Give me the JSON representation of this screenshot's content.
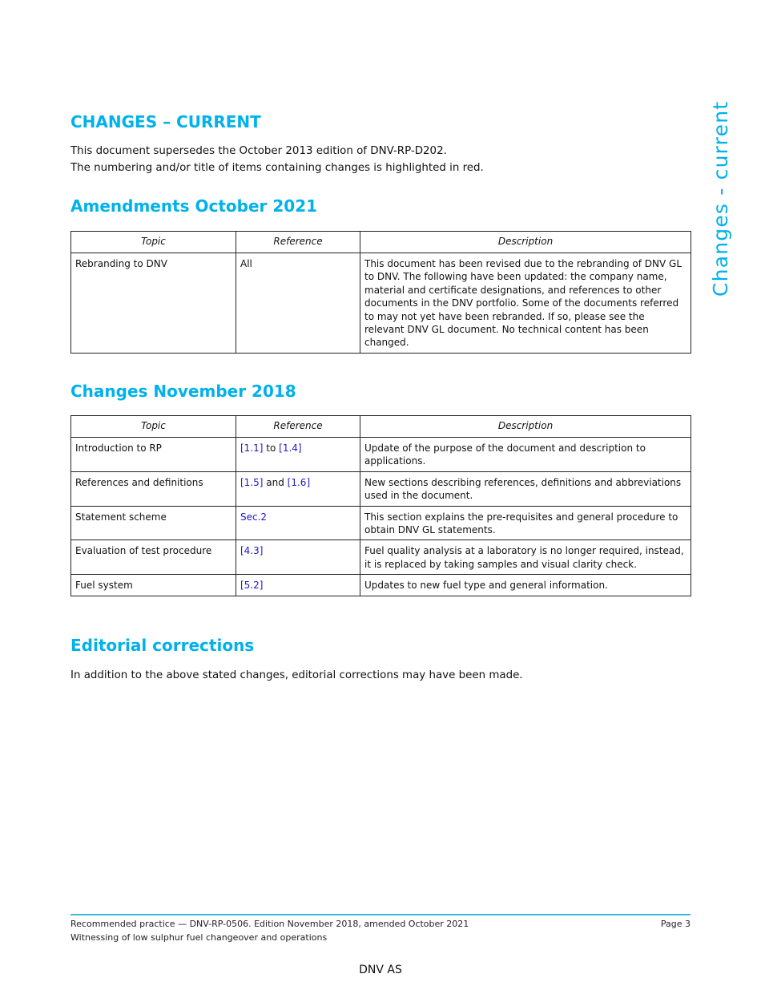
{
  "side_title": "Changes - current",
  "heading": "CHANGES – CURRENT",
  "intro": [
    "This document supersedes the October 2013 edition of DNV-RP-D202.",
    "The numbering and/or title of items containing changes is highlighted in red."
  ],
  "amendments": {
    "title": "Amendments October 2021",
    "headers": [
      "Topic",
      "Reference",
      "Description"
    ],
    "rows": [
      {
        "topic": "Rebranding to DNV",
        "reference": "All",
        "description": "This document has been revised due to the rebranding of DNV GL to DNV. The following have been updated: the company name, material and certificate designations, and references to other documents in the DNV portfolio. Some of the documents referred to may not yet have been rebranded. If so, please see the relevant DNV GL document. No technical content has been changed."
      }
    ]
  },
  "changes": {
    "title": "Changes November 2018",
    "headers": [
      "Topic",
      "Reference",
      "Description"
    ],
    "rows": [
      {
        "topic": "Introduction to RP",
        "ref_parts": [
          "[1.1]",
          " to ",
          "[1.4]"
        ],
        "description": "Update of the purpose of the document and description to applications."
      },
      {
        "topic": "References and definitions",
        "ref_parts": [
          "[1.5]",
          " and ",
          "[1.6]"
        ],
        "description": "New sections describing references, definitions and abbreviations used in the document."
      },
      {
        "topic": "Statement scheme",
        "ref_parts": [
          "Sec.2"
        ],
        "description": "This section explains the pre-requisites and general procedure to obtain DNV GL statements."
      },
      {
        "topic": "Evaluation of test procedure",
        "ref_parts": [
          "[4.3]"
        ],
        "description": "Fuel quality analysis at a laboratory is no longer required, instead, it is replaced by taking samples and visual clarity check."
      },
      {
        "topic": "Fuel system",
        "ref_parts": [
          "[5.2]"
        ],
        "description": "Updates to new fuel type and general information."
      }
    ]
  },
  "editorial": {
    "title": "Editorial corrections",
    "text": "In addition to the above stated changes, editorial corrections may have been made."
  },
  "footer": {
    "line1": "Recommended practice — DNV-RP-0506. Edition November 2018, amended October 2021",
    "line2": "Witnessing of low sulphur fuel changeover and operations",
    "page": "Page 3",
    "company": "DNV AS"
  },
  "colors": {
    "heading": "#00b1eb",
    "link": "#1a1acc"
  }
}
